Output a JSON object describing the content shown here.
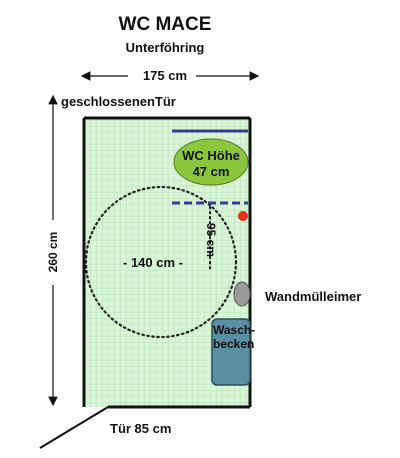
{
  "title": "WC MACE",
  "subtitle": "Unterföhring",
  "dimensions": {
    "width": "175 cm",
    "height": "260 cm",
    "door": "Tür 85 cm",
    "turning_circle": "- 140 cm -",
    "clearance": "- 95 cm -"
  },
  "labels": {
    "door_closed": "geschlossenenTür",
    "wc": "WC Höhe\n47 cm",
    "wc_line1": "WC Höhe",
    "wc_line2": "47 cm",
    "sink_line1": "Wasch-",
    "sink_line2": "becken",
    "bin": "Wandmülleimer"
  },
  "colors": {
    "floor": "#d8f5d6",
    "grid": "#b4dcb4",
    "wc_fill": "#8cc63f",
    "sink_fill": "#5b8fa3",
    "bin_fill": "#9a9a9a",
    "grab_bar": "#2e3f8f",
    "emergency": "#e8301a"
  }
}
